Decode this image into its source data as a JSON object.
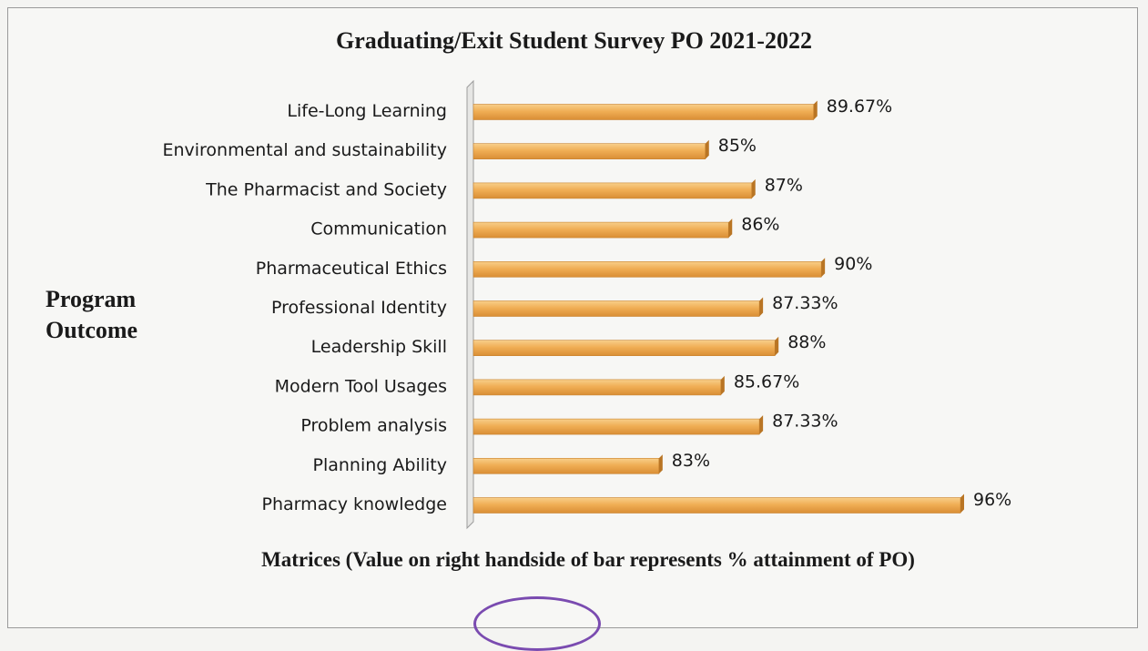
{
  "chart_data": {
    "type": "bar",
    "orientation": "horizontal",
    "title": "Graduating/Exit Student Survey PO 2021-2022",
    "ylabel_lines": [
      "Program",
      "Outcome"
    ],
    "xlabel": "Matrices (Value on right handside of bar represents % attainment of PO)",
    "categories": [
      "Life-Long Learning",
      "Environmental and sustainability",
      "The Pharmacist and Society",
      "Communication",
      "Pharmaceutical Ethics",
      "Professional Identity",
      "Leadership Skill",
      "Modern Tool Usages",
      "Problem analysis",
      "Planning Ability",
      "Pharmacy knowledge"
    ],
    "values": [
      89.67,
      85,
      87,
      86,
      90,
      87.33,
      88,
      85.67,
      87.33,
      83,
      96
    ],
    "value_labels": [
      "89.67%",
      "85%",
      "87%",
      "86%",
      "90%",
      "87.33%",
      "88%",
      "85.67%",
      "87.33%",
      "83%",
      "96%"
    ],
    "xlim": [
      75,
      97
    ],
    "grid": false,
    "legend": "none",
    "bar_color": "#f0ae55"
  }
}
